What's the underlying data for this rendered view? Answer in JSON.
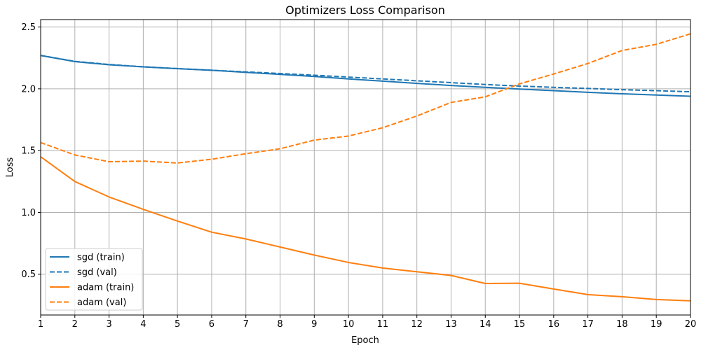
{
  "chart_data": {
    "type": "line",
    "title": "Optimizers Loss Comparison",
    "xlabel": "Epoch",
    "ylabel": "Loss",
    "xlim": [
      1,
      20
    ],
    "ylim": [
      0.17,
      2.56
    ],
    "xticks": [
      1,
      2,
      3,
      4,
      5,
      6,
      7,
      8,
      9,
      10,
      11,
      12,
      13,
      14,
      15,
      16,
      17,
      18,
      19,
      20
    ],
    "yticks": [
      0.5,
      1.0,
      1.5,
      2.0,
      2.5
    ],
    "ytick_labels": [
      "0.5",
      "1.0",
      "1.5",
      "2.0",
      "2.5"
    ],
    "grid": true,
    "legend_position": "lower-left",
    "x": [
      1,
      2,
      3,
      4,
      5,
      6,
      7,
      8,
      9,
      10,
      11,
      12,
      13,
      14,
      15,
      16,
      17,
      18,
      19,
      20
    ],
    "series": [
      {
        "name": "sgd (train)",
        "color": "#1f77b4",
        "dash": "solid",
        "values": [
          2.27,
          2.22,
          2.195,
          2.178,
          2.163,
          2.15,
          2.133,
          2.117,
          2.1,
          2.08,
          2.062,
          2.044,
          2.027,
          2.012,
          1.998,
          1.985,
          1.972,
          1.96,
          1.95,
          1.94
        ]
      },
      {
        "name": "sgd (val)",
        "color": "#1f77b4",
        "dash": "dashed",
        "values": [
          2.27,
          2.222,
          2.197,
          2.178,
          2.164,
          2.15,
          2.137,
          2.124,
          2.11,
          2.095,
          2.08,
          2.065,
          2.05,
          2.035,
          2.022,
          2.012,
          2.003,
          1.993,
          1.985,
          1.976
        ]
      },
      {
        "name": "adam (train)",
        "color": "#ff7f0e",
        "dash": "solid",
        "values": [
          1.45,
          1.25,
          1.125,
          1.025,
          0.93,
          0.84,
          0.785,
          0.72,
          0.655,
          0.595,
          0.55,
          0.52,
          0.49,
          0.425,
          0.427,
          0.38,
          0.335,
          0.318,
          0.295,
          0.285
        ]
      },
      {
        "name": "adam (val)",
        "color": "#ff7f0e",
        "dash": "dashed",
        "values": [
          1.565,
          1.465,
          1.41,
          1.415,
          1.4,
          1.43,
          1.475,
          1.515,
          1.585,
          1.618,
          1.685,
          1.78,
          1.89,
          1.935,
          2.04,
          2.12,
          2.205,
          2.31,
          2.36,
          2.445
        ]
      }
    ]
  }
}
